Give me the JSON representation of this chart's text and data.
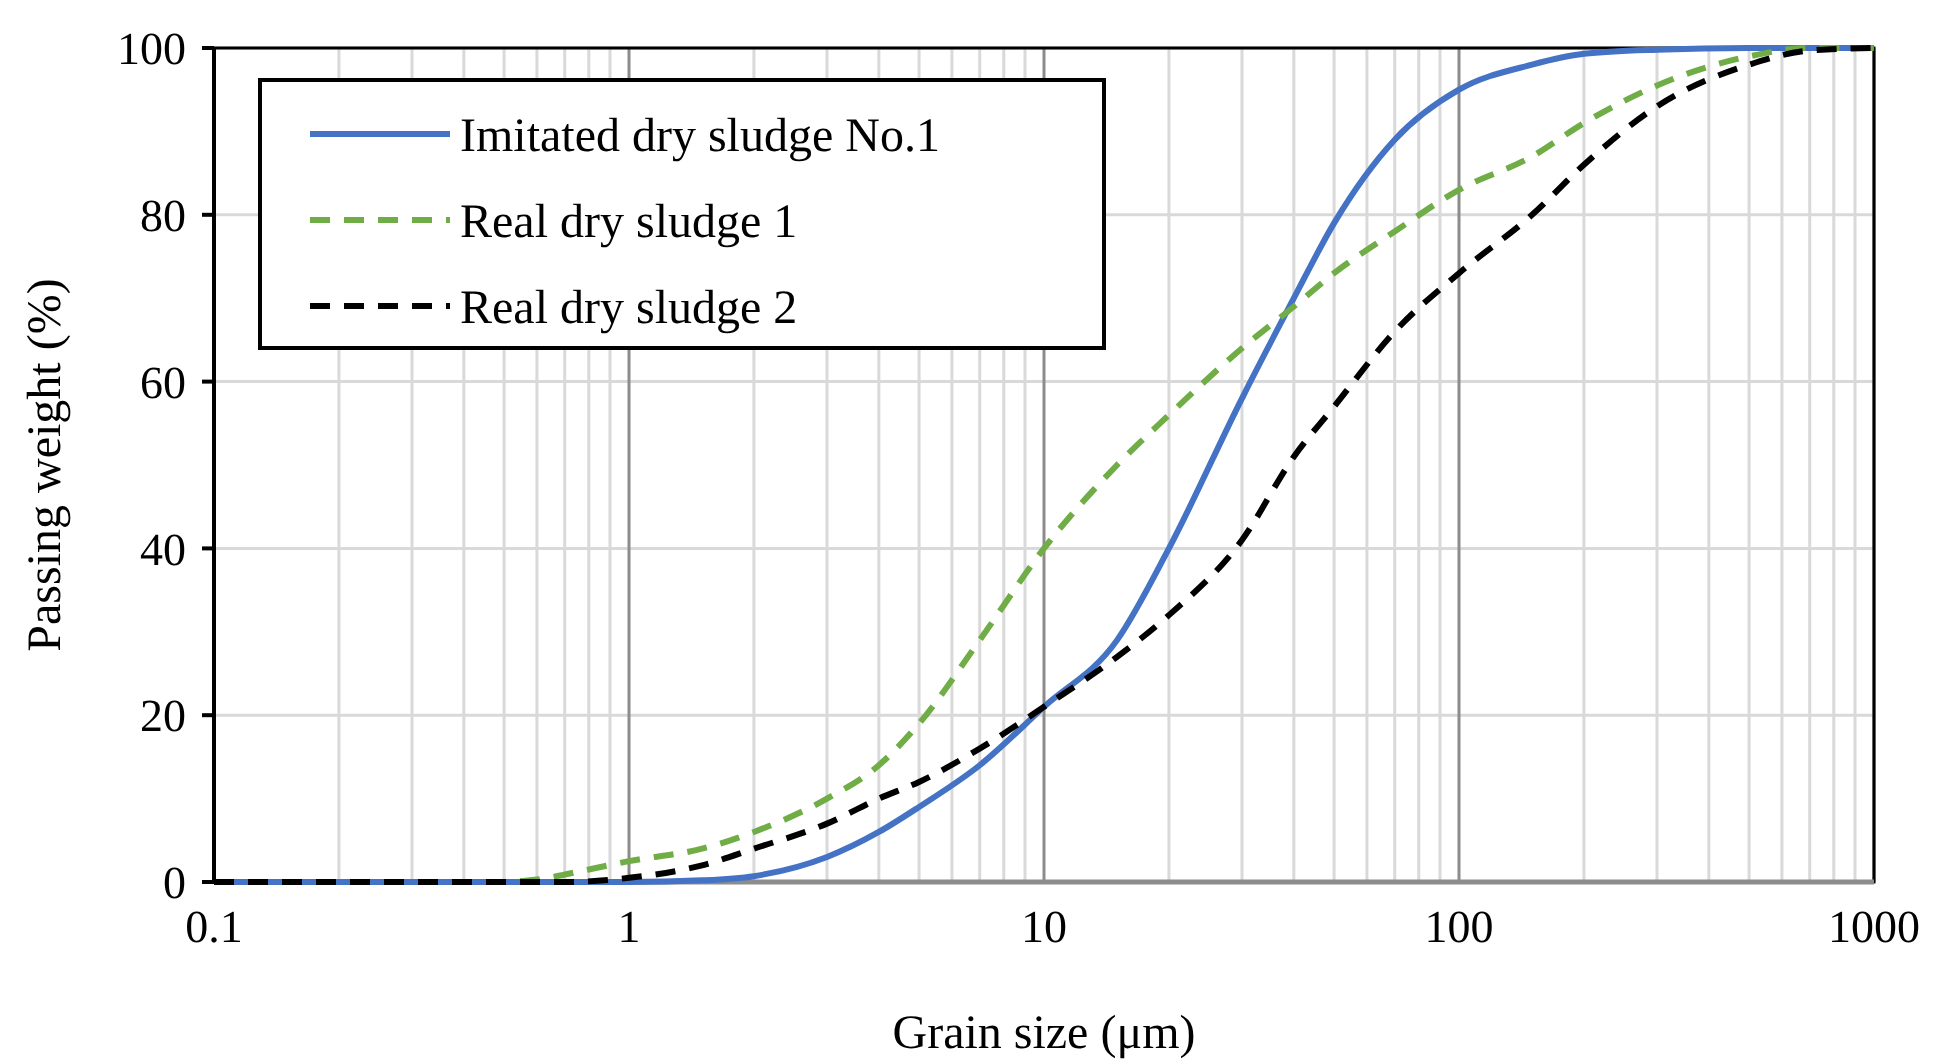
{
  "chart_data": {
    "type": "line",
    "xlabel": "Grain size (μm)",
    "ylabel": "Passing weight (%)",
    "log": "x",
    "xlim": [
      0.1,
      1000
    ],
    "xticks": [
      {
        "value": 0.1,
        "label": "0.1"
      },
      1,
      10,
      100,
      1000
    ],
    "ylim": [
      0,
      100
    ],
    "yticks": [
      0,
      20,
      40,
      60,
      80,
      100
    ],
    "grid": true,
    "legend": "top left",
    "series": [
      {
        "name": "Imitated dry sludge No.1",
        "color": "#4472c4",
        "line_style": "solid",
        "x": [
          0.1,
          1,
          1.5,
          2,
          3,
          4,
          5,
          7,
          10,
          15,
          20,
          30,
          40,
          50,
          70,
          100,
          150,
          200,
          300,
          500,
          1000
        ],
        "values": [
          0,
          0,
          0.2,
          0.7,
          3,
          6,
          9,
          14,
          21,
          29,
          40,
          58,
          70,
          79,
          89,
          95,
          98,
          99.3,
          99.8,
          100,
          100
        ]
      },
      {
        "name": "Real dry sludge 1",
        "color": "#70ad47",
        "line_style": "dashed",
        "x": [
          0.1,
          0.5,
          0.6,
          0.8,
          1,
          1.5,
          2,
          3,
          4,
          5,
          7,
          10,
          15,
          20,
          30,
          40,
          50,
          70,
          100,
          150,
          200,
          300,
          500,
          700,
          1000
        ],
        "values": [
          0,
          0,
          0.3,
          1.5,
          2.5,
          4,
          6,
          10,
          14,
          19,
          29,
          40,
          50,
          56,
          64,
          69,
          73,
          78,
          83,
          87,
          91,
          95.5,
          99,
          100,
          100
        ]
      },
      {
        "name": "Real dry sludge 2",
        "color": "#000000",
        "line_style": "dashed",
        "x": [
          0.1,
          0.7,
          1,
          1.5,
          2,
          3,
          4,
          5,
          7,
          10,
          15,
          20,
          30,
          40,
          50,
          70,
          100,
          150,
          200,
          300,
          500,
          700,
          1000
        ],
        "values": [
          0,
          0,
          0.5,
          2,
          4,
          7,
          10,
          12,
          16,
          21,
          27,
          32,
          41,
          51,
          57,
          66,
          73,
          80,
          86,
          93,
          98,
          99.7,
          100
        ]
      }
    ]
  }
}
